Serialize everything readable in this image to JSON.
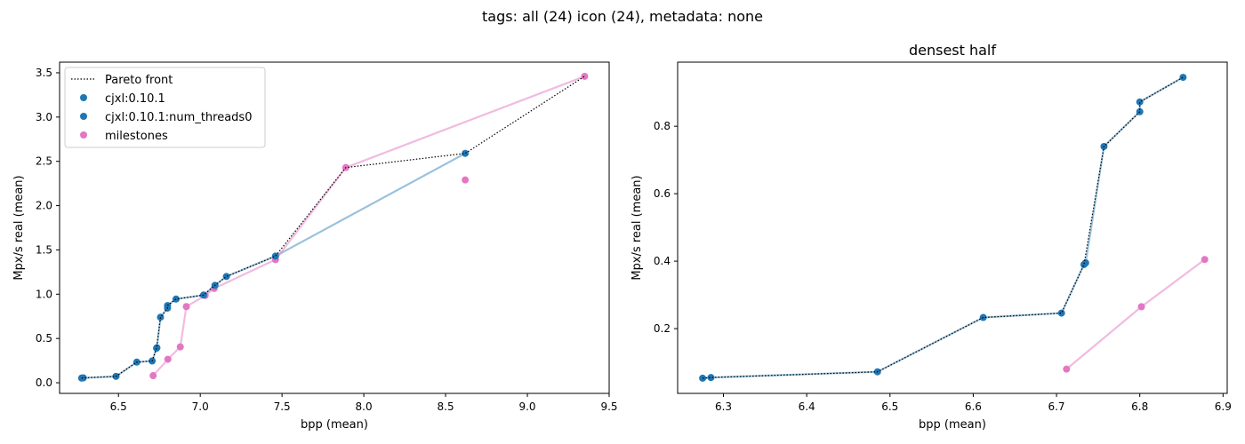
{
  "figure": {
    "suptitle": "tags: all (24) icon (24), metadata: none"
  },
  "colors": {
    "cjxl": "#1f77b4",
    "cjxl_line": "#1f77b4",
    "milestones": "#e377c2",
    "pareto": "#000000"
  },
  "chart_data": [
    {
      "type": "scatter",
      "title": "",
      "xlabel": "bpp (mean)",
      "ylabel": "Mpx/s real (mean)",
      "xlim": [
        6.14,
        9.5
      ],
      "ylim": [
        -0.12,
        3.62
      ],
      "xticks": [
        "6.5",
        "7.0",
        "7.5",
        "8.0",
        "8.5",
        "9.0",
        "9.5"
      ],
      "xtick_values": [
        6.5,
        7.0,
        7.5,
        8.0,
        8.5,
        9.0,
        9.5
      ],
      "yticks": [
        "0.0",
        "0.5",
        "1.0",
        "1.5",
        "2.0",
        "2.5",
        "3.0",
        "3.5"
      ],
      "ytick_values": [
        0.0,
        0.5,
        1.0,
        1.5,
        2.0,
        2.5,
        3.0,
        3.5
      ],
      "legend_position": "top-left",
      "legend": [
        "Pareto front",
        "cjxl:0.10.1",
        "cjxl:0.10.1:num_threads0",
        "milestones"
      ],
      "series": [
        {
          "name": "cjxl:0.10.1",
          "points": [
            [
              6.275,
              0.053
            ],
            [
              6.285,
              0.055
            ],
            [
              6.485,
              0.072
            ],
            [
              6.612,
              0.233
            ],
            [
              6.706,
              0.246
            ],
            [
              6.733,
              0.39
            ],
            [
              6.735,
              0.395
            ],
            [
              6.757,
              0.74
            ],
            [
              6.8,
              0.843
            ],
            [
              6.8,
              0.872
            ],
            [
              6.852,
              0.945
            ],
            [
              7.02,
              0.99
            ],
            [
              7.09,
              1.1
            ],
            [
              7.16,
              1.2
            ],
            [
              7.46,
              1.43
            ],
            [
              8.62,
              2.59
            ]
          ]
        },
        {
          "name": "cjxl:0.10.1:num_threads0",
          "points": [
            [
              6.275,
              0.053
            ],
            [
              6.285,
              0.055
            ],
            [
              6.485,
              0.072
            ],
            [
              6.612,
              0.233
            ],
            [
              6.706,
              0.246
            ],
            [
              6.733,
              0.39
            ],
            [
              6.735,
              0.395
            ],
            [
              6.757,
              0.74
            ],
            [
              6.8,
              0.843
            ],
            [
              6.8,
              0.872
            ],
            [
              6.852,
              0.945
            ],
            [
              7.02,
              0.99
            ],
            [
              7.09,
              1.1
            ],
            [
              7.16,
              1.2
            ],
            [
              7.46,
              1.43
            ],
            [
              8.62,
              2.59
            ]
          ]
        },
        {
          "name": "milestones",
          "points": [
            [
              6.712,
              0.08
            ],
            [
              6.802,
              0.265
            ],
            [
              6.878,
              0.405
            ],
            [
              6.915,
              0.86
            ],
            [
              7.03,
              0.985
            ],
            [
              7.085,
              1.065
            ],
            [
              7.46,
              1.39
            ],
            [
              7.89,
              2.43
            ],
            [
              9.35,
              3.46
            ]
          ],
          "extra_points": [
            [
              8.62,
              2.29
            ]
          ]
        }
      ],
      "pareto_front": [
        [
          6.275,
          0.053
        ],
        [
          6.285,
          0.055
        ],
        [
          6.485,
          0.072
        ],
        [
          6.612,
          0.233
        ],
        [
          6.706,
          0.246
        ],
        [
          6.733,
          0.39
        ],
        [
          6.757,
          0.74
        ],
        [
          6.8,
          0.843
        ],
        [
          6.8,
          0.872
        ],
        [
          6.852,
          0.945
        ],
        [
          7.02,
          0.99
        ],
        [
          7.09,
          1.1
        ],
        [
          7.16,
          1.2
        ],
        [
          7.46,
          1.43
        ],
        [
          7.89,
          2.43
        ],
        [
          8.62,
          2.59
        ],
        [
          9.35,
          3.46
        ]
      ]
    },
    {
      "type": "scatter",
      "title": "densest half",
      "xlabel": "bpp (mean)",
      "ylabel": "Mpx/s real (mean)",
      "xlim": [
        6.245,
        6.905
      ],
      "ylim": [
        0.008,
        0.99
      ],
      "xticks": [
        "6.3",
        "6.4",
        "6.5",
        "6.6",
        "6.7",
        "6.8",
        "6.9"
      ],
      "xtick_values": [
        6.3,
        6.4,
        6.5,
        6.6,
        6.7,
        6.8,
        6.9
      ],
      "yticks": [
        "0.2",
        "0.4",
        "0.6",
        "0.8"
      ],
      "ytick_values": [
        0.2,
        0.4,
        0.6,
        0.8
      ],
      "series": [
        {
          "name": "cjxl:0.10.1",
          "points": [
            [
              6.275,
              0.053
            ],
            [
              6.285,
              0.055
            ],
            [
              6.485,
              0.072
            ],
            [
              6.612,
              0.233
            ],
            [
              6.706,
              0.246
            ],
            [
              6.733,
              0.39
            ],
            [
              6.735,
              0.395
            ],
            [
              6.757,
              0.74
            ],
            [
              6.8,
              0.843
            ],
            [
              6.8,
              0.872
            ],
            [
              6.852,
              0.945
            ]
          ]
        },
        {
          "name": "milestones",
          "points": [
            [
              6.712,
              0.08
            ],
            [
              6.802,
              0.265
            ],
            [
              6.878,
              0.405
            ]
          ]
        }
      ],
      "pareto_front": [
        [
          6.275,
          0.053
        ],
        [
          6.285,
          0.055
        ],
        [
          6.485,
          0.072
        ],
        [
          6.612,
          0.233
        ],
        [
          6.706,
          0.246
        ],
        [
          6.733,
          0.39
        ],
        [
          6.757,
          0.74
        ],
        [
          6.8,
          0.843
        ],
        [
          6.8,
          0.872
        ],
        [
          6.852,
          0.945
        ]
      ]
    }
  ]
}
